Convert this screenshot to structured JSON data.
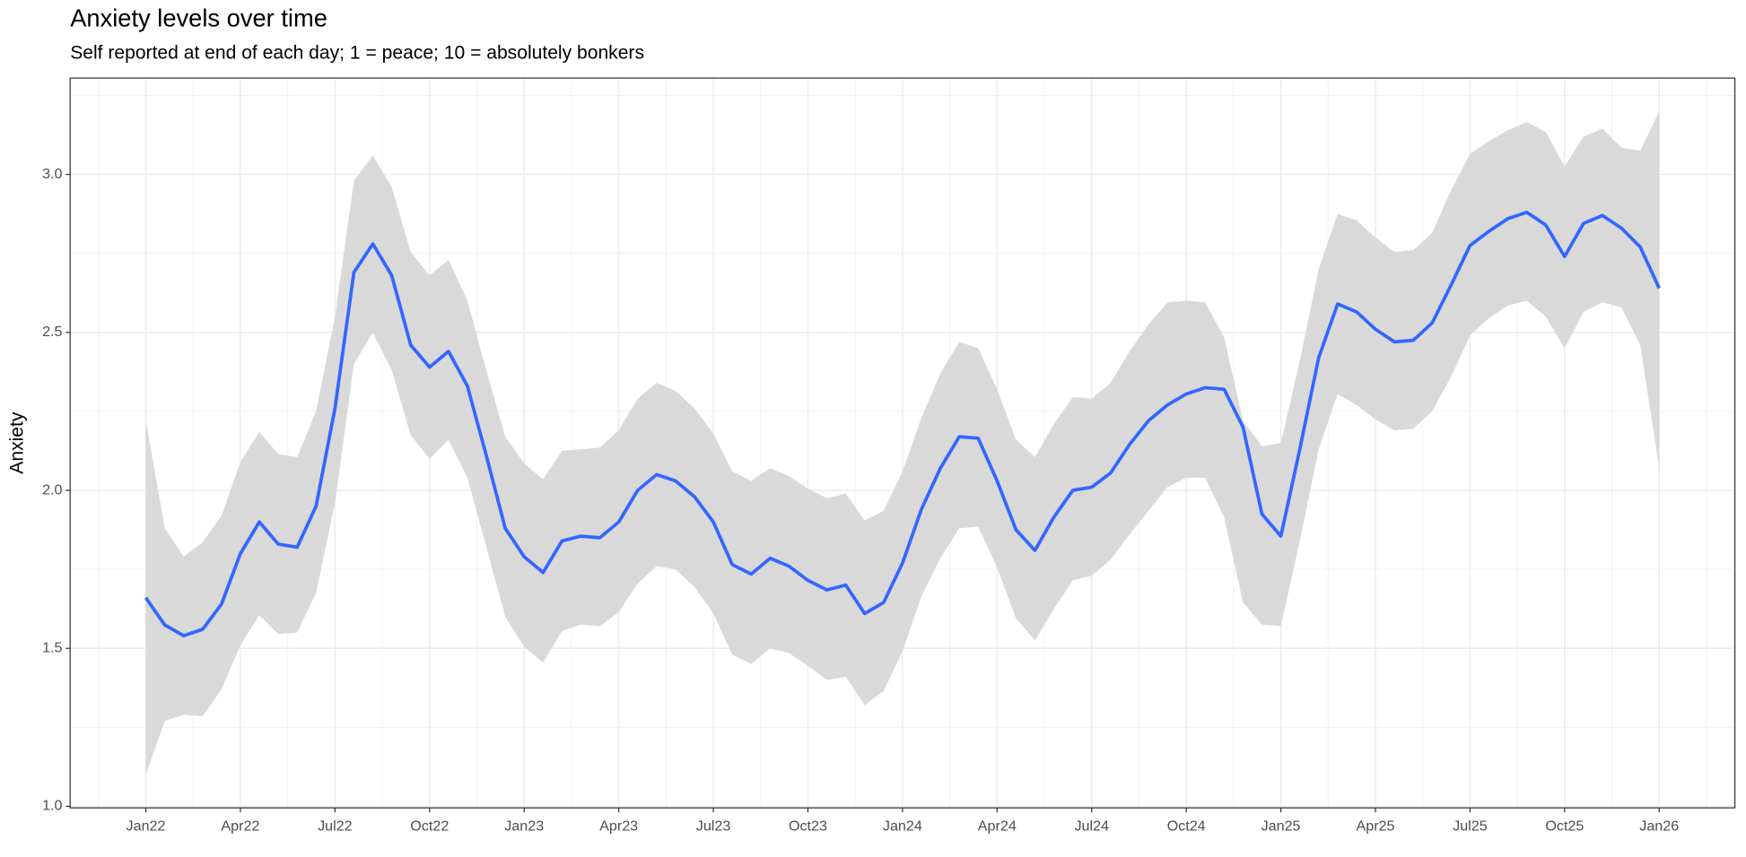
{
  "chart_data": {
    "type": "line",
    "title": "Anxiety levels over time",
    "subtitle": "Self reported at end of each day; 1 = peace; 10 = absolutely bonkers",
    "y_label": "Anxiety",
    "x": [
      2022.0,
      2022.05,
      2022.1,
      2022.15,
      2022.2,
      2022.25,
      2022.3,
      2022.35,
      2022.4,
      2022.45,
      2022.5,
      2022.55,
      2022.6,
      2022.65,
      2022.7,
      2022.75,
      2022.8,
      2022.85,
      2022.9,
      2022.95,
      2023.0,
      2023.05,
      2023.1,
      2023.15,
      2023.2,
      2023.25,
      2023.3,
      2023.35,
      2023.4,
      2023.45,
      2023.5,
      2023.55,
      2023.6,
      2023.65,
      2023.7,
      2023.75,
      2023.8,
      2023.85,
      2023.9,
      2023.95,
      2024.0,
      2024.05,
      2024.1,
      2024.15,
      2024.2,
      2024.25,
      2024.3,
      2024.35,
      2024.4,
      2024.45,
      2024.5,
      2024.55,
      2024.6,
      2024.65,
      2024.7,
      2024.75,
      2024.8,
      2024.85,
      2024.9,
      2024.95,
      2025.0,
      2025.05,
      2025.1,
      2025.15,
      2025.2,
      2025.25,
      2025.3,
      2025.35,
      2025.4,
      2025.45,
      2025.5,
      2025.55,
      2025.6,
      2025.65,
      2025.7,
      2025.75,
      2025.8,
      2025.85,
      2025.9,
      2025.95,
      2026.0
    ],
    "values": [
      1.66,
      1.574,
      1.54,
      1.56,
      1.64,
      1.8,
      1.9,
      1.83,
      1.82,
      1.95,
      2.26,
      2.69,
      2.78,
      2.68,
      2.46,
      2.39,
      2.44,
      2.33,
      2.11,
      1.88,
      1.79,
      1.74,
      1.84,
      1.855,
      1.85,
      1.9,
      2.0,
      2.05,
      2.03,
      1.98,
      1.9,
      1.765,
      1.735,
      1.785,
      1.76,
      1.715,
      1.685,
      1.7,
      1.61,
      1.645,
      1.77,
      1.94,
      2.07,
      2.17,
      2.165,
      2.03,
      1.875,
      1.81,
      1.915,
      2.0,
      2.01,
      2.055,
      2.145,
      2.22,
      2.27,
      2.305,
      2.325,
      2.32,
      2.2,
      1.925,
      1.855,
      2.13,
      2.42,
      2.59,
      2.565,
      2.51,
      2.47,
      2.475,
      2.53,
      2.65,
      2.775,
      2.82,
      2.86,
      2.88,
      2.84,
      2.74,
      2.845,
      2.87,
      2.83,
      2.77,
      2.64
    ],
    "upper": [
      2.22,
      1.88,
      1.79,
      1.835,
      1.92,
      2.09,
      2.185,
      2.115,
      2.105,
      2.25,
      2.55,
      2.98,
      3.06,
      2.96,
      2.755,
      2.68,
      2.73,
      2.6,
      2.38,
      2.17,
      2.085,
      2.035,
      2.125,
      2.13,
      2.135,
      2.19,
      2.29,
      2.34,
      2.315,
      2.26,
      2.18,
      2.06,
      2.03,
      2.07,
      2.045,
      2.005,
      1.975,
      1.99,
      1.905,
      1.935,
      2.06,
      2.23,
      2.37,
      2.47,
      2.45,
      2.32,
      2.16,
      2.105,
      2.21,
      2.295,
      2.29,
      2.34,
      2.44,
      2.525,
      2.595,
      2.6,
      2.595,
      2.485,
      2.22,
      2.14,
      2.15,
      2.41,
      2.7,
      2.875,
      2.855,
      2.8,
      2.755,
      2.76,
      2.815,
      2.95,
      3.065,
      3.105,
      3.14,
      3.165,
      3.135,
      3.025,
      3.12,
      3.145,
      3.085,
      3.075,
      3.2
    ],
    "lower": [
      1.1,
      1.27,
      1.29,
      1.285,
      1.37,
      1.51,
      1.605,
      1.545,
      1.55,
      1.675,
      1.96,
      2.4,
      2.5,
      2.38,
      2.175,
      2.1,
      2.16,
      2.04,
      1.82,
      1.6,
      1.505,
      1.455,
      1.555,
      1.575,
      1.57,
      1.615,
      1.705,
      1.76,
      1.75,
      1.695,
      1.61,
      1.48,
      1.45,
      1.5,
      1.485,
      1.445,
      1.4,
      1.41,
      1.32,
      1.365,
      1.49,
      1.665,
      1.785,
      1.88,
      1.885,
      1.755,
      1.595,
      1.525,
      1.625,
      1.715,
      1.73,
      1.78,
      1.86,
      1.935,
      2.01,
      2.04,
      2.04,
      1.915,
      1.645,
      1.575,
      1.57,
      1.84,
      2.13,
      2.305,
      2.27,
      2.225,
      2.19,
      2.195,
      2.25,
      2.36,
      2.49,
      2.545,
      2.585,
      2.6,
      2.55,
      2.45,
      2.565,
      2.595,
      2.58,
      2.46,
      2.07
    ],
    "color": "#3366ff",
    "band_color": "#d9d9d9",
    "xlim": [
      2021.8,
      2026.2
    ],
    "xticks": [
      {
        "value": 2022.0,
        "label": "Jan22"
      },
      {
        "value": 2022.25,
        "label": "Apr22"
      },
      {
        "value": 2022.5,
        "label": "Jul22"
      },
      {
        "value": 2022.75,
        "label": "Oct22"
      },
      {
        "value": 2023.0,
        "label": "Jan23"
      },
      {
        "value": 2023.25,
        "label": "Apr23"
      },
      {
        "value": 2023.5,
        "label": "Jul23"
      },
      {
        "value": 2023.75,
        "label": "Oct23"
      },
      {
        "value": 2024.0,
        "label": "Jan24"
      },
      {
        "value": 2024.25,
        "label": "Apr24"
      },
      {
        "value": 2024.5,
        "label": "Jul24"
      },
      {
        "value": 2024.75,
        "label": "Oct24"
      },
      {
        "value": 2025.0,
        "label": "Jan25"
      },
      {
        "value": 2025.25,
        "label": "Apr25"
      },
      {
        "value": 2025.5,
        "label": "Jul25"
      },
      {
        "value": 2025.75,
        "label": "Oct25"
      },
      {
        "value": 2026.0,
        "label": "Jan26"
      }
    ],
    "x_minor_ticks": [
      2021.875,
      2022.125,
      2022.375,
      2022.625,
      2022.875,
      2023.125,
      2023.375,
      2023.625,
      2023.875,
      2024.125,
      2024.375,
      2024.625,
      2024.875,
      2025.125,
      2025.375,
      2025.625,
      2025.875,
      2026.125
    ],
    "ylim": [
      0.995,
      3.305
    ],
    "yticks": [
      {
        "value": 1,
        "label": "1.0"
      },
      {
        "value": 1.5,
        "label": "1.5"
      },
      {
        "value": 2,
        "label": "2.0"
      },
      {
        "value": 2.5,
        "label": "2.5"
      },
      {
        "value": 3,
        "label": "3.0"
      }
    ],
    "y_minor_ticks": [
      1.25,
      1.75,
      2.25,
      2.75,
      3.25
    ],
    "grid": true
  }
}
